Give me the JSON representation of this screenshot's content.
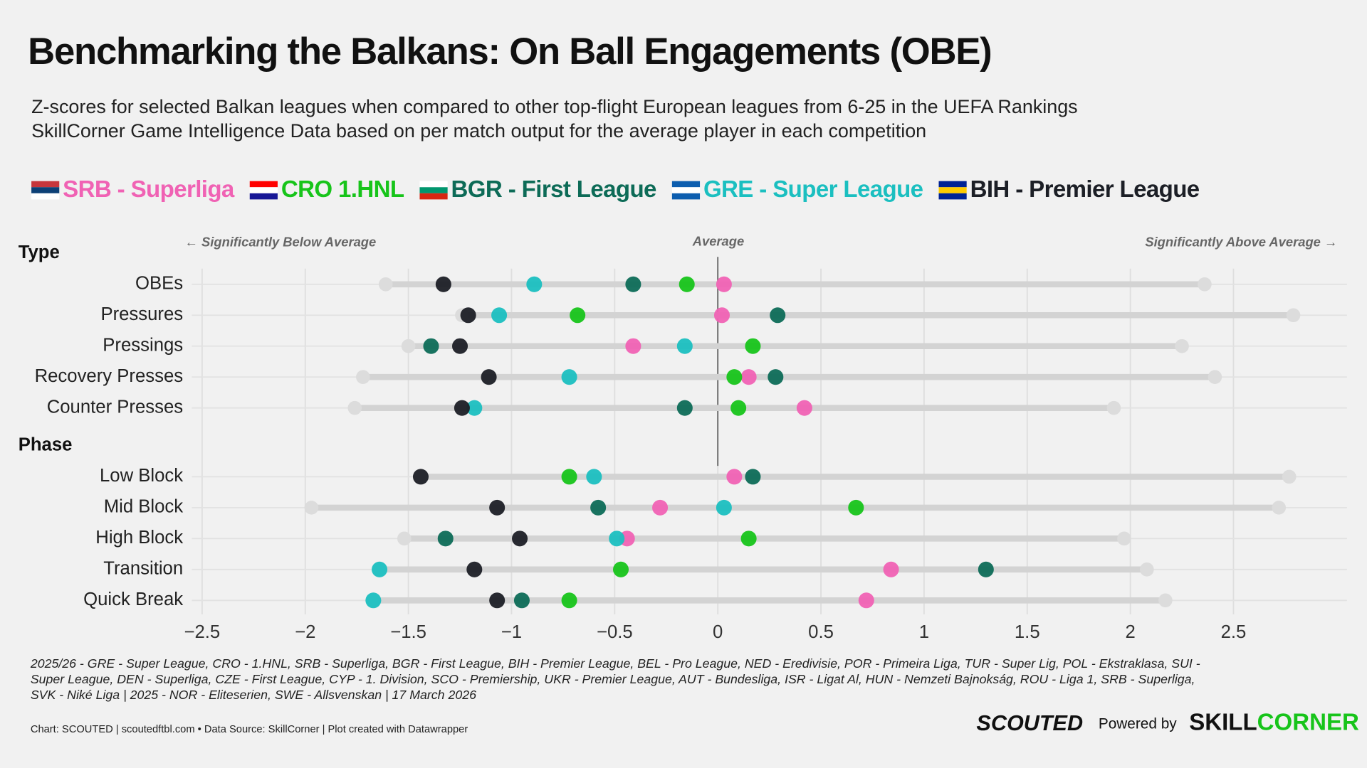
{
  "chart_data": {
    "type": "dot",
    "title": "Benchmarking the Balkans: On Ball Engagements (OBE)",
    "subtitle": [
      "Z-scores for selected Balkan leagues when compared to other top-flight European leagues from 6-25 in the UEFA Rankings",
      "SkillCorner Game Intelligence Data based on per match output for the average player in each competition"
    ],
    "annotations": {
      "below": "← Significantly Below Average",
      "average": "Average",
      "above": "Significantly Above Average →"
    },
    "groups": [
      {
        "name": "Type",
        "categories": [
          "OBEs",
          "Pressures",
          "Pressings",
          "Recovery Presses",
          "Counter Presses"
        ]
      },
      {
        "name": "Phase",
        "categories": [
          "Low Block",
          "Mid Block",
          "High Block",
          "Transition",
          "Quick Break"
        ]
      }
    ],
    "ranges": [
      [
        -1.61,
        2.36
      ],
      [
        -1.24,
        2.79
      ],
      [
        -1.5,
        2.25
      ],
      [
        -1.72,
        2.41
      ],
      [
        -1.76,
        1.92
      ],
      [
        -1.44,
        2.77
      ],
      [
        -1.97,
        2.72
      ],
      [
        -1.52,
        1.97
      ],
      [
        -1.64,
        2.08
      ],
      [
        -1.67,
        2.17
      ]
    ],
    "series": [
      {
        "name": "SRB - Superliga",
        "color": "#f062b4",
        "values": [
          0.03,
          0.02,
          -0.41,
          0.15,
          0.42,
          0.08,
          -0.28,
          -0.44,
          0.84,
          0.72
        ]
      },
      {
        "name": "CRO 1.HNL",
        "color": "#17c41a",
        "values": [
          -0.15,
          -0.68,
          0.17,
          0.08,
          0.1,
          -0.72,
          0.67,
          0.15,
          -0.47,
          -0.72
        ]
      },
      {
        "name": "BGR - First League",
        "color": "#0d6b57",
        "values": [
          -0.41,
          0.29,
          -1.39,
          0.28,
          -0.16,
          0.17,
          -0.58,
          -1.32,
          1.3,
          -0.95
        ]
      },
      {
        "name": "GRE - Super League",
        "color": "#1bbfc0",
        "values": [
          -0.89,
          -1.06,
          -0.16,
          -0.72,
          -1.18,
          -0.6,
          0.03,
          -0.49,
          -1.64,
          -1.67
        ]
      },
      {
        "name": "BIH - Premier League",
        "color": "#1c1f26",
        "values": [
          -1.33,
          -1.21,
          -1.25,
          -1.11,
          -1.24,
          -1.44,
          -1.07,
          -0.96,
          -1.18,
          -1.07
        ]
      }
    ],
    "xlim": [
      -2.55,
      3.05
    ],
    "xticks": [
      {
        "value": -2.5,
        "label": "−2.5"
      },
      {
        "value": -2,
        "label": "−2"
      },
      {
        "value": -1.5,
        "label": "−1.5"
      },
      {
        "value": -1,
        "label": "−1"
      },
      {
        "value": -0.5,
        "label": "−0.5"
      },
      0,
      0.5,
      1,
      1.5,
      2,
      2.5
    ],
    "grid": true,
    "footnote": [
      "2025/26 - GRE - Super League, CRO - 1.HNL, SRB - Superliga, BGR - First League, BIH - Premier League, BEL - Pro League, NED - Eredivisie, POR - Primeira Liga, TUR - Super Lig, POL - Ekstraklasa, SUI -",
      "Super League, DEN - Superliga, CZE - First League, CYP - 1. Division, SCO - Premiership, UKR - Premier League, AUT - Bundesliga, ISR - Ligat Al, HUN - Nemzeti Bajnokság, ROU - Liga 1, SRB - Superliga,",
      "SVK - Niké Liga | 2025 - NOR - Eliteserien, SWE - Allsvenskan | 17 March 2026"
    ],
    "credit": "Chart: SCOUTED | scoutedftbl.com • Data Source: SkillCorner | Plot created with Datawrapper",
    "logos": {
      "scouted": "SCOUTED",
      "powered": "Powered by",
      "skill": "SKILL",
      "corner": "CORNER"
    }
  }
}
